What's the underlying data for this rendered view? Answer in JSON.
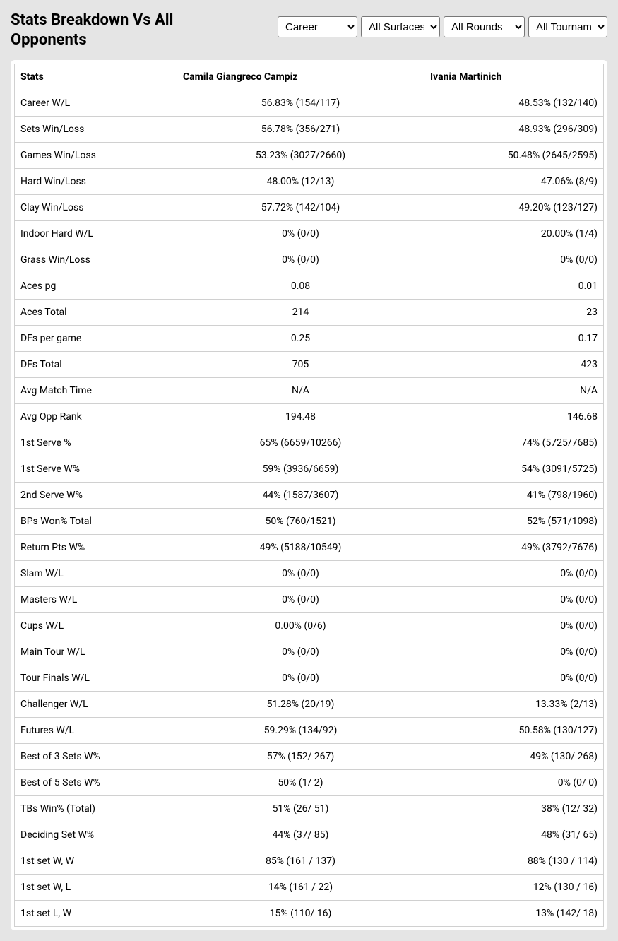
{
  "title": "Stats Breakdown Vs All Opponents",
  "filters": {
    "career": "Career",
    "surface": "All Surfaces",
    "round": "All Rounds",
    "tournament": "All Tournaments"
  },
  "headers": {
    "stats": "Stats",
    "player_a": "Camila Giangreco Campiz",
    "player_b": "Ivania Martinich"
  },
  "rows": [
    {
      "label": "Career W/L",
      "a": "56.83% (154/117)",
      "b": "48.53% (132/140)"
    },
    {
      "label": "Sets Win/Loss",
      "a": "56.78% (356/271)",
      "b": "48.93% (296/309)"
    },
    {
      "label": "Games Win/Loss",
      "a": "53.23% (3027/2660)",
      "b": "50.48% (2645/2595)"
    },
    {
      "label": "Hard Win/Loss",
      "a": "48.00% (12/13)",
      "b": "47.06% (8/9)"
    },
    {
      "label": "Clay Win/Loss",
      "a": "57.72% (142/104)",
      "b": "49.20% (123/127)"
    },
    {
      "label": "Indoor Hard W/L",
      "a": "0% (0/0)",
      "b": "20.00% (1/4)"
    },
    {
      "label": "Grass Win/Loss",
      "a": "0% (0/0)",
      "b": "0% (0/0)"
    },
    {
      "label": "Aces pg",
      "a": "0.08",
      "b": "0.01"
    },
    {
      "label": "Aces Total",
      "a": "214",
      "b": "23"
    },
    {
      "label": "DFs per game",
      "a": "0.25",
      "b": "0.17"
    },
    {
      "label": "DFs Total",
      "a": "705",
      "b": "423"
    },
    {
      "label": "Avg Match Time",
      "a": "N/A",
      "b": "N/A"
    },
    {
      "label": "Avg Opp Rank",
      "a": "194.48",
      "b": "146.68"
    },
    {
      "label": "1st Serve %",
      "a": "65% (6659/10266)",
      "b": "74% (5725/7685)"
    },
    {
      "label": "1st Serve W%",
      "a": "59% (3936/6659)",
      "b": "54% (3091/5725)"
    },
    {
      "label": "2nd Serve W%",
      "a": "44% (1587/3607)",
      "b": "41% (798/1960)"
    },
    {
      "label": "BPs Won% Total",
      "a": "50% (760/1521)",
      "b": "52% (571/1098)"
    },
    {
      "label": "Return Pts W%",
      "a": "49% (5188/10549)",
      "b": "49% (3792/7676)"
    },
    {
      "label": "Slam W/L",
      "a": "0% (0/0)",
      "b": "0% (0/0)"
    },
    {
      "label": "Masters W/L",
      "a": "0% (0/0)",
      "b": "0% (0/0)"
    },
    {
      "label": "Cups W/L",
      "a": "0.00% (0/6)",
      "b": "0% (0/0)"
    },
    {
      "label": "Main Tour W/L",
      "a": "0% (0/0)",
      "b": "0% (0/0)"
    },
    {
      "label": "Tour Finals W/L",
      "a": "0% (0/0)",
      "b": "0% (0/0)"
    },
    {
      "label": "Challenger W/L",
      "a": "51.28% (20/19)",
      "b": "13.33% (2/13)"
    },
    {
      "label": "Futures W/L",
      "a": "59.29% (134/92)",
      "b": "50.58% (130/127)"
    },
    {
      "label": "Best of 3 Sets W%",
      "a": "57% (152/ 267)",
      "b": "49% (130/ 268)"
    },
    {
      "label": "Best of 5 Sets W%",
      "a": "50% (1/ 2)",
      "b": "0% (0/ 0)"
    },
    {
      "label": "TBs Win% (Total)",
      "a": "51% (26/ 51)",
      "b": "38% (12/ 32)"
    },
    {
      "label": "Deciding Set W%",
      "a": "44% (37/ 85)",
      "b": "48% (31/ 65)"
    },
    {
      "label": "1st set W, W",
      "a": "85% (161 / 137)",
      "b": "88% (130 / 114)"
    },
    {
      "label": "1st set W, L",
      "a": "14% (161 / 22)",
      "b": "12% (130 / 16)"
    },
    {
      "label": "1st set L, W",
      "a": "15% (110/ 16)",
      "b": "13% (142/ 18)"
    }
  ]
}
